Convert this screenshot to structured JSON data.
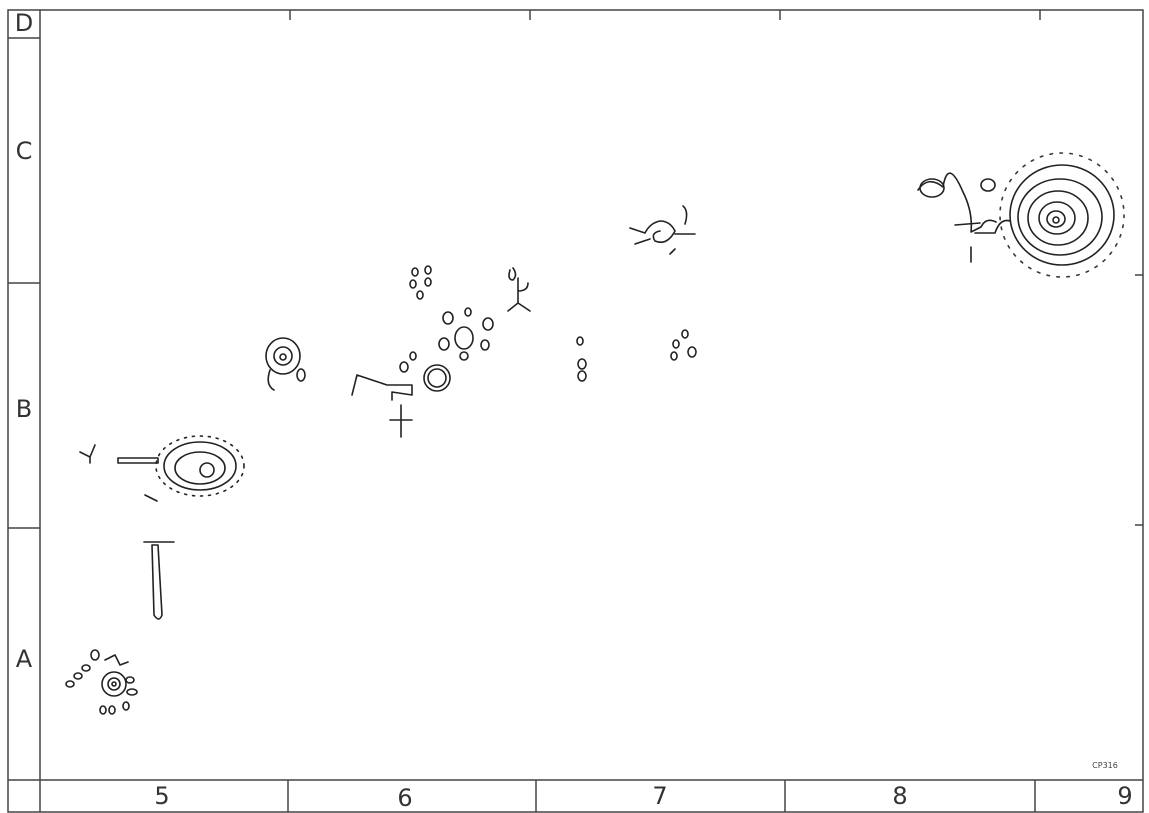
{
  "rows": [
    "D",
    "C",
    "B",
    "A"
  ],
  "columns": [
    "5",
    "6",
    "7",
    "8",
    "9"
  ],
  "signature": "CP316"
}
